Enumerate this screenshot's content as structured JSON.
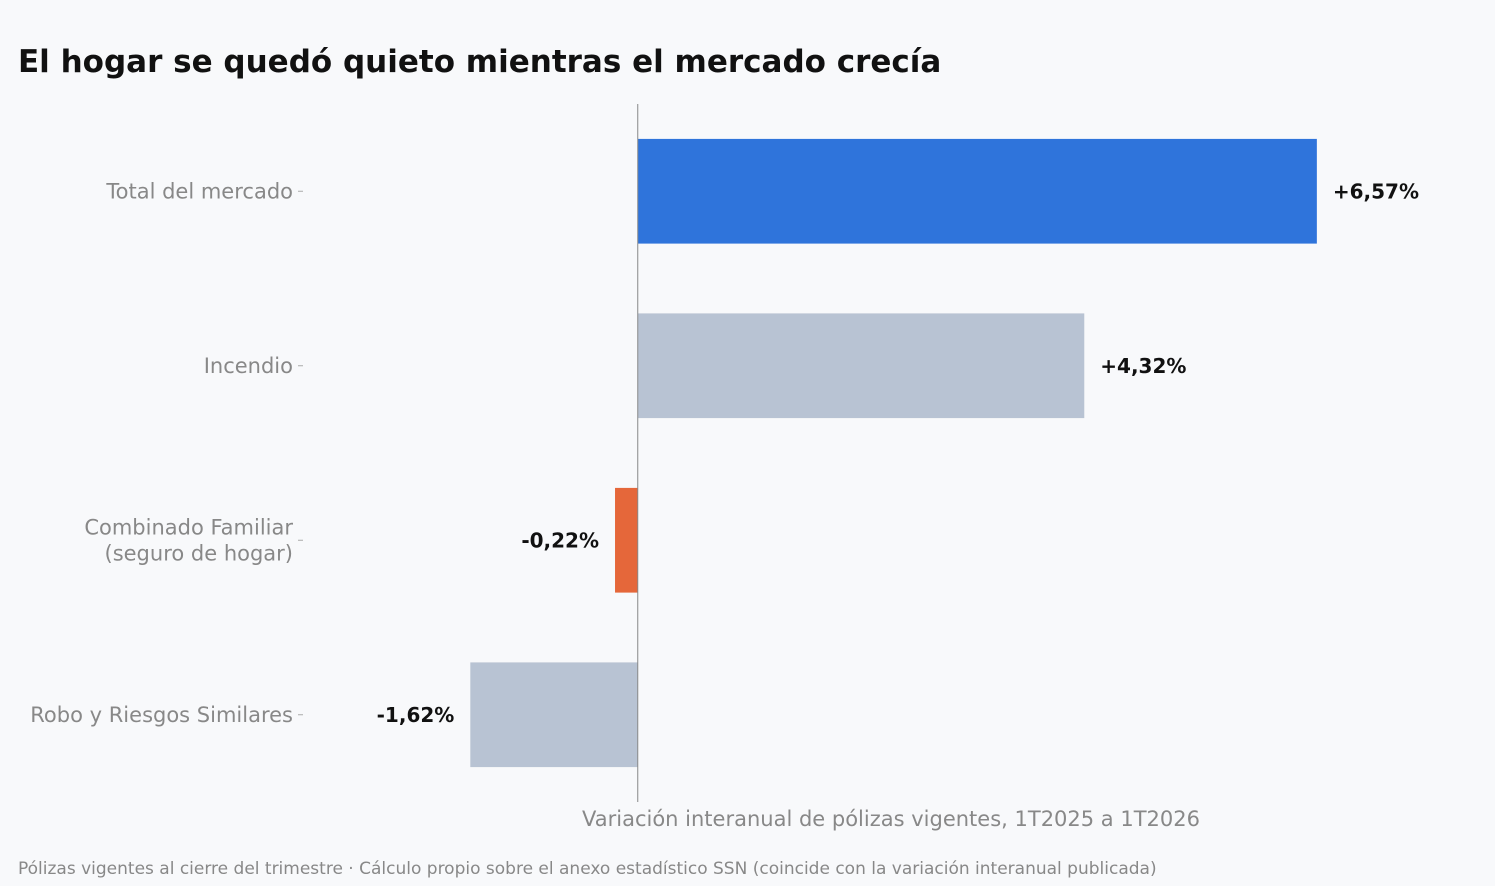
{
  "title": "El hogar se quedó quieto mientras el mercado crecía",
  "footnote": "Pólizas vigentes al cierre del trimestre · Cálculo propio sobre el anexo estadístico SSN (coincide con la variación interanual publicada)",
  "chart_data": {
    "type": "bar",
    "orientation": "horizontal",
    "categories": [
      "Total del mercado",
      "Incendio",
      "Combinado Familiar\n(seguro de hogar)",
      "Robo y Riesgos Similares"
    ],
    "values": [
      6.57,
      4.32,
      -0.22,
      -1.62
    ],
    "data_labels": [
      "+6,57%",
      "+4,32%",
      "-0,22%",
      "-1,62%"
    ],
    "colors": [
      "#2f74db",
      "#b8c3d3",
      "#e5673a",
      "#b8c3d3"
    ],
    "xlabel": "Variación interanual de pólizas vigentes, 1T2025 a 1T2026",
    "xlim": [
      -3.2,
      8.1
    ],
    "grid": false,
    "axis_text_color": "#888888",
    "label_color": "#111111"
  }
}
